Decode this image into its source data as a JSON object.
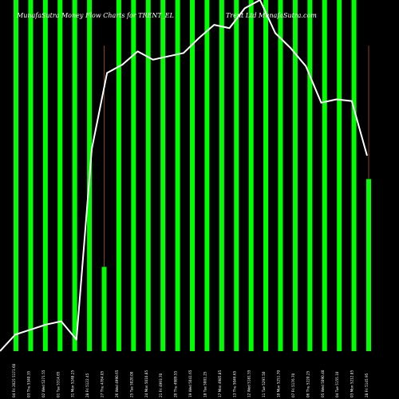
{
  "header": {
    "title_left": "MunafaSutra  Money Flow  Charts for TRENT_EL",
    "title_right": "Trent Ltd   MunafaSutra.com"
  },
  "colors": {
    "background": "#000000",
    "bar": "#00ff00",
    "line": "#ffffff",
    "wick": "#8b4513",
    "text": "#ffffff"
  },
  "chart_data": {
    "type": "bar",
    "title": "MunafaSutra  Money Flow  Charts for TRENT_EL",
    "subtitle": "Trent Ltd   MunafaSutra.com",
    "categories": [
      "04 Fri 2025 5171.60",
      "03 Thu 5340.35",
      "02 Wed 5271.55",
      "01 Tue 5314.65",
      "31 Mon 5248.25",
      "28 Fri 5122.45",
      "27 Thu 4784.05",
      "26 Wed 4990.65",
      "25 Tue 5020.00",
      "24 Mon 5010.85",
      "21 Fri 4993.70",
      "20 Thu 4989.55",
      "19 Wed 5041.65",
      "18 Tue 5001.25",
      "17 Mon 4985.85",
      "13 Thu 5046.65",
      "12 Wed 5181.55",
      "11 Tue 5297.50",
      "10 Mon 5251.70",
      "07 Fri 5176.70",
      "06 Thu 5220.25",
      "05 Wed 5090.40",
      "04 Tue 5155.10",
      "03 Mon 5212.85",
      "28 Fri 5145.95"
    ],
    "values": [
      100,
      100,
      100,
      100,
      100,
      100,
      24,
      100,
      100,
      100,
      100,
      100,
      100,
      100,
      100,
      100,
      100,
      100,
      100,
      100,
      100,
      100,
      100,
      100,
      49
    ],
    "wick_values": [
      null,
      null,
      null,
      null,
      null,
      null,
      87,
      null,
      null,
      null,
      null,
      null,
      null,
      null,
      null,
      null,
      null,
      null,
      null,
      null,
      null,
      null,
      null,
      null,
      87
    ],
    "line_values": [
      0.0,
      5.0,
      6.5,
      8.0,
      9.0,
      3.5,
      61.0,
      84.0,
      86.5,
      90.5,
      88.0,
      89.0,
      90.0,
      94.5,
      98.5,
      97.5,
      103.5,
      106.0,
      96.0,
      91.5,
      86.0,
      75.0,
      76.0,
      75.5,
      59.0
    ],
    "ylim": [
      0,
      100
    ],
    "xlabel": "",
    "ylabel": "",
    "grid": false,
    "legend": "none"
  }
}
